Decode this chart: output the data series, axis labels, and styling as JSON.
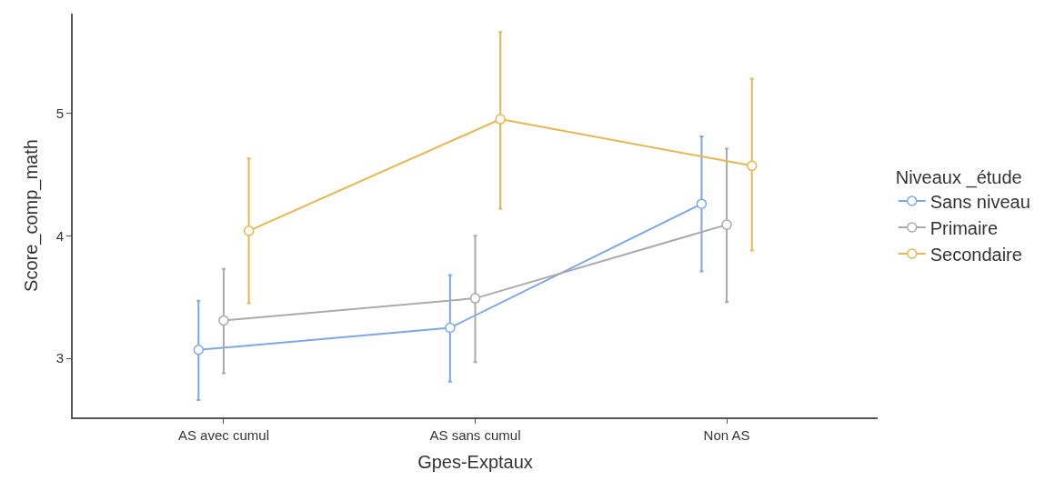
{
  "chart_data": {
    "type": "line",
    "xlabel": "Gpes-Exptaux",
    "ylabel": "Score_comp_math",
    "legend_title": "Niveaux _étude",
    "categories": [
      "AS avec cumul",
      "AS sans cumul",
      "Non AS"
    ],
    "series": [
      {
        "name": "Sans niveau",
        "color": "#7ea7e8",
        "values": [
          3.07,
          3.25,
          4.26
        ],
        "errors": [
          [
            2.66,
            3.47
          ],
          [
            2.81,
            3.68
          ],
          [
            3.71,
            4.81
          ]
        ]
      },
      {
        "name": "Primaire",
        "color": "#aaaaaa",
        "values": [
          3.31,
          3.49,
          4.09
        ],
        "errors": [
          [
            2.88,
            3.73
          ],
          [
            2.97,
            4.0
          ],
          [
            3.46,
            4.71
          ]
        ]
      },
      {
        "name": "Secondaire",
        "color": "#e8b650",
        "values": [
          4.04,
          4.95,
          4.57
        ],
        "errors": [
          [
            3.45,
            4.63
          ],
          [
            4.22,
            5.66
          ],
          [
            3.88,
            5.28
          ]
        ]
      }
    ],
    "ylim": [
      2.52,
      5.81
    ],
    "yticks": [
      3,
      4,
      5
    ],
    "legend": "right",
    "marker": "circle",
    "line_style": "solid"
  }
}
